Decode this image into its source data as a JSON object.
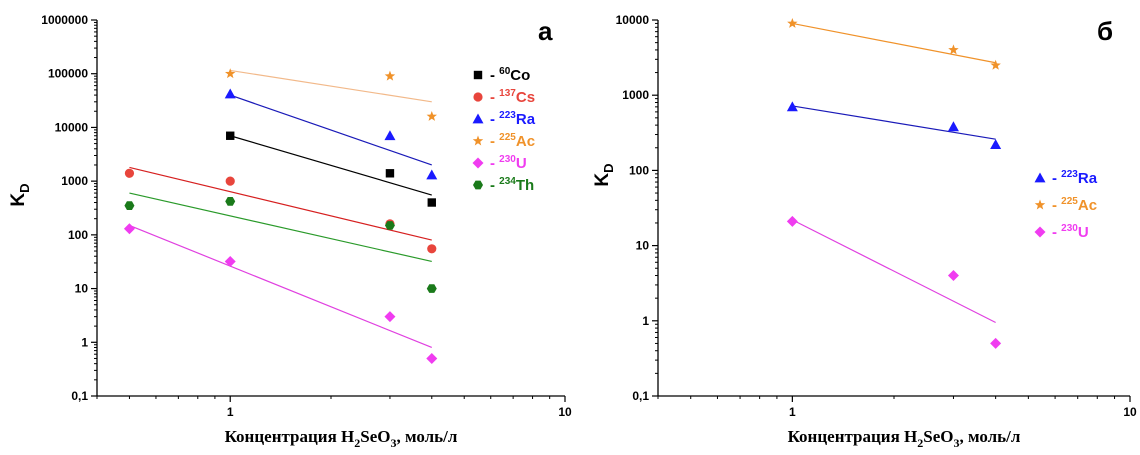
{
  "chart_data": [
    {
      "type": "scatter",
      "panel_label": "а",
      "xlabel": {
        "pre": "Концентрация H",
        "sub1": "2",
        "mid": "SeO",
        "sub2": "3",
        "post": ", моль/л"
      },
      "ylabel": {
        "main": "K",
        "sub": "D"
      },
      "x_scale": "log",
      "y_scale": "log",
      "xlim": [
        0.4,
        10
      ],
      "ylim": [
        0.1,
        1000000
      ],
      "x_ticks": [
        1,
        10
      ],
      "x_tick_labels": [
        "1",
        "10"
      ],
      "y_ticks": [
        0.1,
        1,
        10,
        100,
        1000,
        10000,
        100000,
        1000000
      ],
      "y_tick_labels": [
        "0,1",
        "1",
        "10",
        "100",
        "1000",
        "10000",
        "100000",
        "1000000"
      ],
      "grid": false,
      "legend_position": "right",
      "series": [
        {
          "name": "60Co",
          "legend_prefix": "- ",
          "legend_sup": "60",
          "legend_sym": "Co",
          "color": "#000000",
          "line_color": "#000000",
          "marker": "square",
          "x": [
            1,
            3,
            4
          ],
          "y": [
            7000,
            1400,
            400
          ],
          "fit_x": [
            1,
            4
          ],
          "fit_y": [
            7000,
            550
          ]
        },
        {
          "name": "137Cs",
          "legend_prefix": "- ",
          "legend_sup": "137",
          "legend_sym": "Cs",
          "color": "#e8453c",
          "line_color": "#d62020",
          "marker": "circle",
          "x": [
            0.5,
            1,
            3,
            4
          ],
          "y": [
            1400,
            1000,
            160,
            55
          ],
          "fit_x": [
            0.5,
            4
          ],
          "fit_y": [
            1800,
            80
          ]
        },
        {
          "name": "223Ra",
          "legend_prefix": "- ",
          "legend_sup": "223",
          "legend_sym": "Ra",
          "color": "#1a1aff",
          "line_color": "#1a1ab8",
          "marker": "triangle",
          "x": [
            1,
            3,
            4
          ],
          "y": [
            42000,
            7000,
            1300
          ],
          "fit_x": [
            1,
            4
          ],
          "fit_y": [
            40000,
            2000
          ]
        },
        {
          "name": "225Ac",
          "legend_prefix": "- ",
          "legend_sup": "225",
          "legend_sym": "Ac",
          "color": "#f0922a",
          "line_color": "#f2b98a",
          "marker": "star",
          "x": [
            1,
            3,
            4
          ],
          "y": [
            100000,
            90000,
            16000
          ],
          "fit_x": [
            1,
            4
          ],
          "fit_y": [
            115000,
            30000
          ]
        },
        {
          "name": "230U",
          "legend_prefix": "- ",
          "legend_sup": "230",
          "legend_sym": "U",
          "color": "#f03cf0",
          "line_color": "#e040e0",
          "marker": "diamond",
          "x": [
            0.5,
            1,
            3,
            4
          ],
          "y": [
            130,
            32,
            3,
            0.5
          ],
          "fit_x": [
            0.5,
            4
          ],
          "fit_y": [
            150,
            0.8
          ]
        },
        {
          "name": "234Th",
          "legend_prefix": "- ",
          "legend_sup": "234",
          "legend_sym": "Th",
          "color": "#1a7a1a",
          "line_color": "#2a9a2a",
          "marker": "hexagon",
          "x": [
            0.5,
            1,
            3,
            4
          ],
          "y": [
            350,
            420,
            150,
            10
          ],
          "fit_x": [
            0.5,
            4
          ],
          "fit_y": [
            600,
            32
          ]
        }
      ]
    },
    {
      "type": "scatter",
      "panel_label": "б",
      "xlabel": {
        "pre": "Концентрация H",
        "sub1": "2",
        "mid": "SeO",
        "sub2": "3",
        "post": ", моль/л"
      },
      "ylabel": {
        "main": "K",
        "sub": "D"
      },
      "x_scale": "log",
      "y_scale": "log",
      "xlim": [
        0.4,
        10
      ],
      "ylim": [
        0.1,
        10000
      ],
      "x_ticks": [
        1,
        10
      ],
      "x_tick_labels": [
        "1",
        "10"
      ],
      "y_ticks": [
        0.1,
        1,
        10,
        100,
        1000,
        10000
      ],
      "y_tick_labels": [
        "0,1",
        "1",
        "10",
        "100",
        "1000",
        "10000"
      ],
      "grid": false,
      "legend_position": "right",
      "series": [
        {
          "name": "223Ra",
          "legend_prefix": "- ",
          "legend_sup": "223",
          "legend_sym": "Ra",
          "color": "#1a1aff",
          "line_color": "#1a1ab8",
          "marker": "triangle",
          "x": [
            1,
            3,
            4
          ],
          "y": [
            700,
            380,
            220
          ],
          "fit_x": [
            1,
            4
          ],
          "fit_y": [
            720,
            260
          ]
        },
        {
          "name": "225Ac",
          "legend_prefix": "- ",
          "legend_sup": "225",
          "legend_sym": "Ac",
          "color": "#f0922a",
          "line_color": "#f0922a",
          "marker": "star",
          "x": [
            1,
            3,
            4
          ],
          "y": [
            9000,
            4000,
            2500
          ],
          "fit_x": [
            1,
            4
          ],
          "fit_y": [
            9000,
            2700
          ]
        },
        {
          "name": "230U",
          "legend_prefix": "- ",
          "legend_sup": "230",
          "legend_sym": "U",
          "color": "#f03cf0",
          "line_color": "#e040e0",
          "marker": "diamond",
          "x": [
            1,
            3,
            4
          ],
          "y": [
            21,
            4,
            0.5
          ],
          "fit_x": [
            1,
            4
          ],
          "fit_y": [
            22,
            0.95
          ]
        }
      ]
    }
  ]
}
